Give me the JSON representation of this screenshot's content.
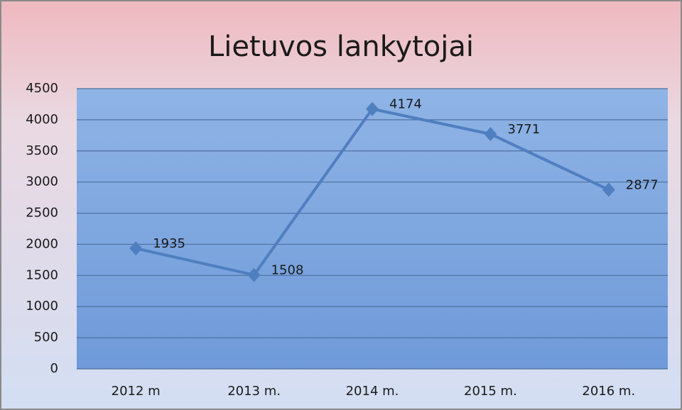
{
  "chart_data": {
    "type": "line",
    "title": "Lietuvos lankytojai",
    "categories": [
      "2012 m",
      "2013 m.",
      "2014 m.",
      "2015 m.",
      "2016 m."
    ],
    "values": [
      1935,
      1508,
      4174,
      3771,
      2877
    ],
    "color": "#4f7fc0",
    "ylim": [
      0,
      4500
    ],
    "yticks": [
      0,
      500,
      1000,
      1500,
      2000,
      2500,
      3000,
      3500,
      4000,
      4500
    ],
    "grid": true
  }
}
